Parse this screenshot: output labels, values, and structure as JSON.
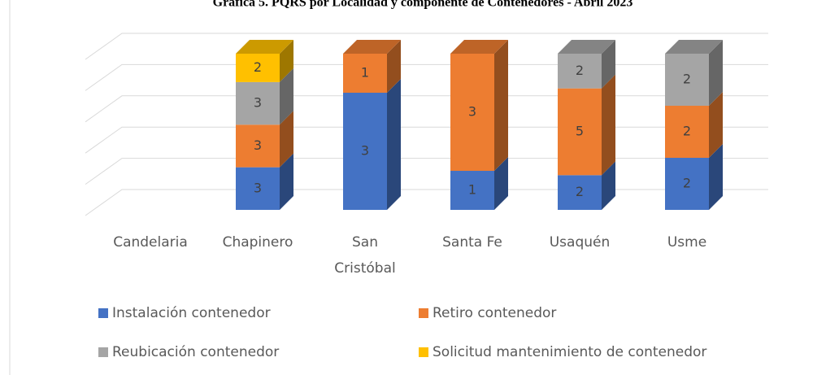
{
  "chart_data": {
    "type": "bar",
    "stacked": "percent",
    "title": "Gráfica 5. PQRS por Localidad y componente de Contenedores - Abril 2023",
    "categories": [
      "Candelaria",
      "Chapinero",
      "San Cristóbal",
      "Santa Fe",
      "Usaquén",
      "Usme"
    ],
    "series": [
      {
        "name": "Instalación contenedor",
        "color": "#4472c4",
        "values": [
          null,
          3,
          3,
          1,
          2,
          2
        ]
      },
      {
        "name": "Retiro contenedor",
        "color": "#ed7d31",
        "values": [
          null,
          3,
          1,
          3,
          5,
          2
        ]
      },
      {
        "name": "Reubicación contenedor",
        "color": "#a5a5a5",
        "values": [
          null,
          3,
          null,
          null,
          2,
          2
        ]
      },
      {
        "name": "Solicitud mantenimiento de contenedor",
        "color": "#ffc000",
        "values": [
          null,
          2,
          null,
          null,
          null,
          null
        ]
      }
    ],
    "ylim": [
      0,
      100
    ],
    "yticks": [
      0,
      20,
      40,
      60,
      80,
      100
    ],
    "grid": true,
    "legend": "bottom"
  }
}
